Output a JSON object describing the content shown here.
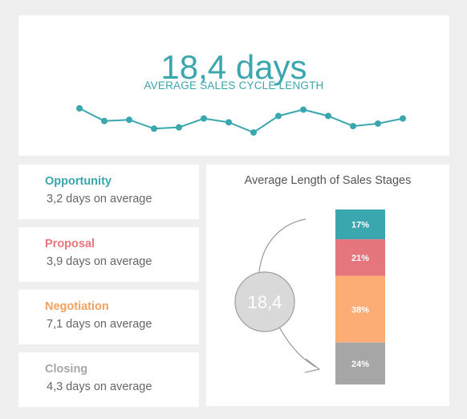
{
  "headline": {
    "value": "18,4 days",
    "label": "AVERAGE SALES CYCLE LENGTH"
  },
  "stages": [
    {
      "name": "Opportunity",
      "sub": "3,2 days on average",
      "color": "#3aa6ad"
    },
    {
      "name": "Proposal",
      "sub": "3,9 days on average",
      "color": "#e5767e"
    },
    {
      "name": "Negotiation",
      "sub": "7,1 days on average",
      "color": "#f2a15f"
    },
    {
      "name": "Closing",
      "sub": "4,3 days on average",
      "color": "#a6a6a6"
    }
  ],
  "chart_data": [
    {
      "type": "line",
      "x": [
        1,
        2,
        3,
        4,
        5,
        6,
        7,
        8,
        9,
        10,
        11,
        12,
        13,
        14
      ],
      "series": [
        {
          "values": [
            19.4,
            18.4,
            18.5,
            17.8,
            17.9,
            18.6,
            18.3,
            17.5,
            18.8,
            19.3,
            18.8,
            18.0,
            18.2,
            18.6
          ]
        }
      ],
      "ylim": [
        17.5,
        19.4
      ],
      "color": "#3aa6ad",
      "grid": false,
      "axes": false
    },
    {
      "type": "bar",
      "stacked": true,
      "title": "Average Length of Sales Stages",
      "total_label": "18,4",
      "categories": [
        "Opportunity",
        "Proposal",
        "Negotiation",
        "Closing"
      ],
      "values": [
        17,
        21,
        38,
        24
      ],
      "labels": [
        "17%",
        "21%",
        "38%",
        "24%"
      ],
      "colors": [
        "#3aa6ad",
        "#e5767e",
        "#fcad75",
        "#a6a6a6"
      ]
    }
  ]
}
